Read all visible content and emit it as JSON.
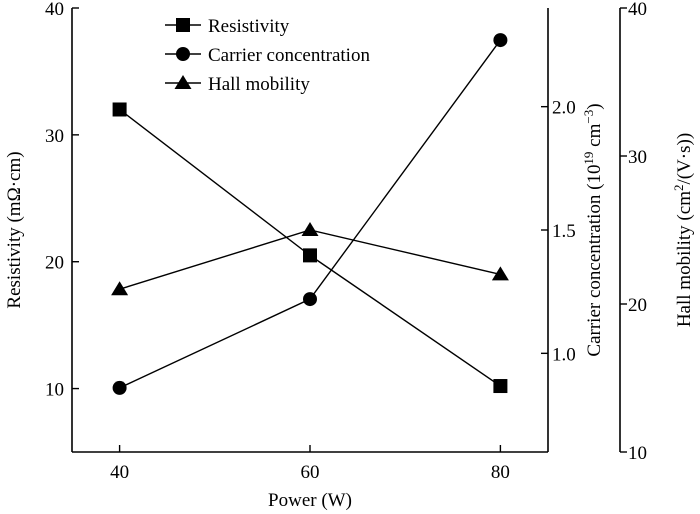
{
  "chart_data": {
    "type": "line",
    "x": [
      40,
      60,
      80
    ],
    "xlabel": "Power (W)",
    "xlim": [
      35,
      85
    ],
    "xticks": [
      40,
      60,
      80
    ],
    "axes": {
      "left": {
        "label": "Resistivity (mΩ·cm)",
        "range": [
          5,
          40
        ],
        "ticks": [
          10,
          20,
          30,
          40
        ]
      },
      "middle": {
        "label_main": "Carrier concentration (10",
        "label_sup1": "19",
        "label_mid": " cm",
        "label_sup2": "−3",
        "label_end": ")",
        "range": [
          0.6,
          2.4
        ],
        "ticks": [
          1.0,
          1.5,
          2.0
        ]
      },
      "right": {
        "label_main": "Hall mobility (cm",
        "label_sup": "2",
        "label_end": "/(V·s))",
        "range": [
          10,
          40
        ],
        "ticks": [
          10,
          20,
          30,
          40
        ]
      }
    },
    "series": [
      {
        "name": "Resistivity",
        "marker": "square",
        "axis": "left",
        "values": [
          32,
          20.5,
          10.2
        ]
      },
      {
        "name": "Carrier concentration",
        "marker": "circle",
        "axis": "middle",
        "values": [
          0.86,
          1.22,
          2.27
        ]
      },
      {
        "name": "Hall mobility",
        "marker": "triangle",
        "axis": "right",
        "values": [
          21.0,
          25.0,
          22.0
        ]
      }
    ],
    "legend": "top-center",
    "grid": false
  }
}
